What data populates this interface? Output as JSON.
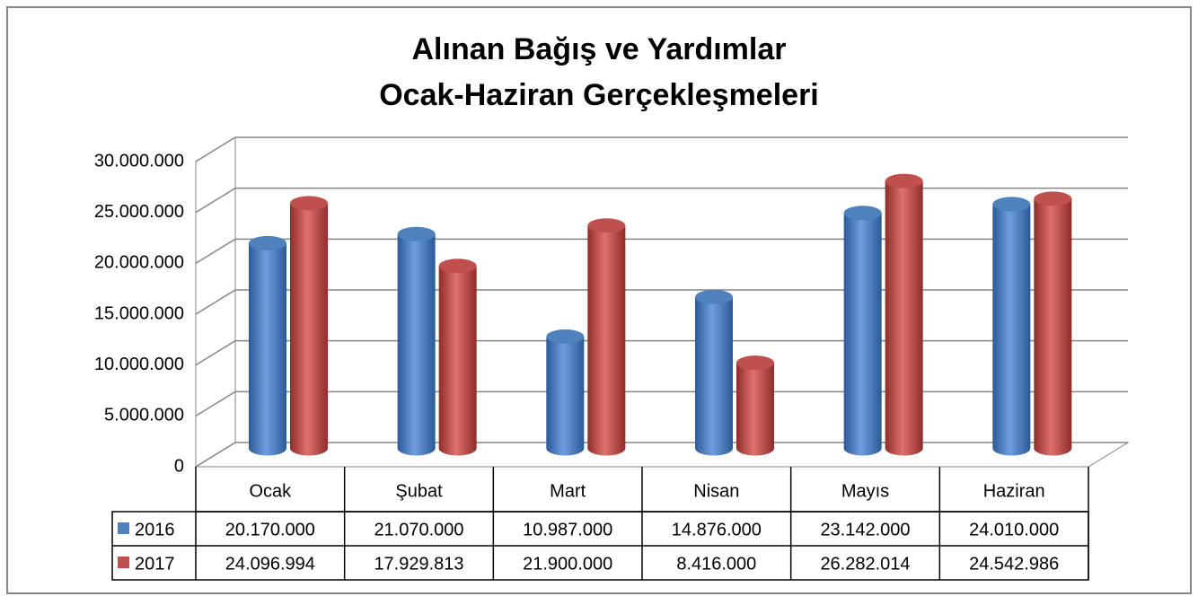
{
  "chart_data": {
    "type": "bar3d",
    "title": "Alınan Bağış ve Yardımlar",
    "subtitle": "Ocak-Haziran Gerçekleşmeleri",
    "categories": [
      "Ocak",
      "Şubat",
      "Mart",
      "Nisan",
      "Mayıs",
      "Haziran"
    ],
    "series": [
      {
        "name": "2016",
        "color": "#4f81bd",
        "values": [
          20170000,
          21070000,
          10987000,
          14876000,
          23142000,
          24010000
        ],
        "value_labels": [
          "20.170.000",
          "21.070.000",
          "10.987.000",
          "14.876.000",
          "23.142.000",
          "24.010.000"
        ]
      },
      {
        "name": "2017",
        "color": "#c0504d",
        "values": [
          24096994,
          17929813,
          21900000,
          8416000,
          26282014,
          24542986
        ],
        "value_labels": [
          "24.096.994",
          "17.929.813",
          "21.900.000",
          "8.416.000",
          "26.282.014",
          "24.542.986"
        ]
      }
    ],
    "ylim": [
      0,
      30000000
    ],
    "yticks": [
      0,
      {
        "value": 5000000,
        "label": "5.000.000"
      },
      {
        "value": 10000000,
        "label": "10.000.000"
      },
      {
        "value": 15000000,
        "label": "15.000.000"
      },
      {
        "value": 20000000,
        "label": "20.000.000"
      },
      {
        "value": 25000000,
        "label": "25.000.000"
      },
      {
        "value": 30000000,
        "label": "30.000.000"
      }
    ],
    "grid": true,
    "data_table": true
  }
}
